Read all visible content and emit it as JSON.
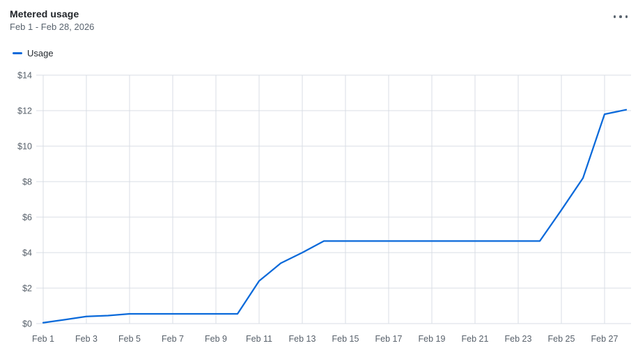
{
  "header": {
    "title": "Metered usage",
    "date_range": "Feb 1 - Feb 28, 2026",
    "menu_icon": "kebab-horizontal-icon"
  },
  "legend": {
    "items": [
      {
        "label": "Usage",
        "color": "#0969da"
      }
    ]
  },
  "colors": {
    "accent": "#0969da",
    "title_text": "#1f2328",
    "muted_text": "#59636e",
    "axis_text": "#57606a",
    "gridline": "#d8dee4",
    "background": "#ffffff"
  },
  "chart_data": {
    "type": "line",
    "title": "Metered usage",
    "subtitle": "Feb 1 - Feb 28, 2026",
    "xlabel": "",
    "ylabel": "",
    "x_unit": "day of February 2026",
    "x": [
      1,
      2,
      3,
      4,
      5,
      6,
      7,
      8,
      9,
      10,
      11,
      12,
      13,
      14,
      15,
      16,
      17,
      18,
      19,
      20,
      21,
      22,
      23,
      24,
      25,
      26,
      27,
      28
    ],
    "series": [
      {
        "name": "Usage",
        "color": "#0969da",
        "values": [
          0.05,
          0.22,
          0.4,
          0.45,
          0.55,
          0.55,
          0.55,
          0.55,
          0.55,
          0.55,
          2.4,
          3.4,
          4.0,
          4.65,
          4.65,
          4.65,
          4.65,
          4.65,
          4.65,
          4.65,
          4.65,
          4.65,
          4.65,
          4.65,
          6.4,
          8.2,
          11.8,
          12.05
        ]
      }
    ],
    "x_tick_days": [
      1,
      3,
      5,
      7,
      9,
      11,
      13,
      15,
      17,
      19,
      21,
      23,
      25,
      27
    ],
    "x_tick_labels": [
      "Feb 1",
      "Feb 3",
      "Feb 5",
      "Feb 7",
      "Feb 9",
      "Feb 11",
      "Feb 13",
      "Feb 15",
      "Feb 17",
      "Feb 19",
      "Feb 21",
      "Feb 23",
      "Feb 25",
      "Feb 27"
    ],
    "y_ticks": [
      0,
      2,
      4,
      6,
      8,
      10,
      12,
      14
    ],
    "y_tick_labels": [
      "$0",
      "$2",
      "$4",
      "$6",
      "$8",
      "$10",
      "$12",
      "$14"
    ],
    "xlim": [
      1,
      28
    ],
    "ylim": [
      0,
      14
    ],
    "grid": true,
    "legend_position": "top-left"
  }
}
